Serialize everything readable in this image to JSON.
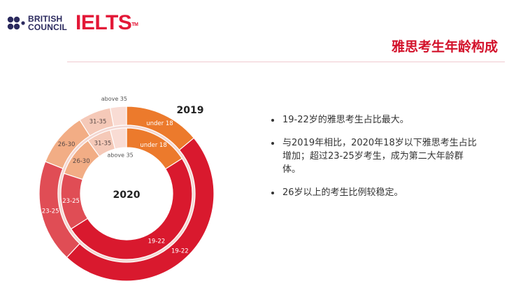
{
  "header": {
    "brand_line1": "BRITISH",
    "brand_line2": "COUNCIL",
    "ielts": "IELTS",
    "ielts_tm": "TM",
    "title": "雅思考生年龄构成"
  },
  "colors": {
    "brand_red": "#e31837",
    "title_red": "#d3122b",
    "brand_navy": "#2b2a5e"
  },
  "chart_data": {
    "type": "donut",
    "rings": [
      {
        "name": "2019",
        "position": "outer",
        "slices": [
          {
            "label": "under 18",
            "value": 14,
            "color": "#ec7a2c"
          },
          {
            "label": "19-22",
            "value": 48,
            "color": "#d9192e"
          },
          {
            "label": "23-25",
            "value": 19,
            "color": "#e04d55"
          },
          {
            "label": "26-30",
            "value": 10,
            "color": "#f2ad85"
          },
          {
            "label": "31-35",
            "value": 6,
            "color": "#f5c9b8"
          },
          {
            "label": "above 35",
            "value": 3,
            "color": "#f9dcd4"
          }
        ]
      },
      {
        "name": "2020",
        "position": "inner",
        "slices": [
          {
            "label": "under 18",
            "value": 16,
            "color": "#ec7a2c"
          },
          {
            "label": "19-22",
            "value": 50,
            "color": "#d9192e"
          },
          {
            "label": "23-25",
            "value": 14,
            "color": "#e04d55"
          },
          {
            "label": "26-30",
            "value": 10,
            "color": "#f2ad85"
          },
          {
            "label": "31-35",
            "value": 6,
            "color": "#f5c9b8"
          },
          {
            "label": "above 35",
            "value": 4,
            "color": "#f9dcd4"
          }
        ]
      }
    ],
    "outer_title": "2019",
    "inner_title": "2020"
  },
  "bullets": [
    "19-22岁的雅思考生占比最大。",
    "与2019年相比，2020年18岁以下雅思考生占比增加；超过23-25岁考生，成为第二大年龄群体。",
    "26岁以上的考生比例较稳定。"
  ]
}
